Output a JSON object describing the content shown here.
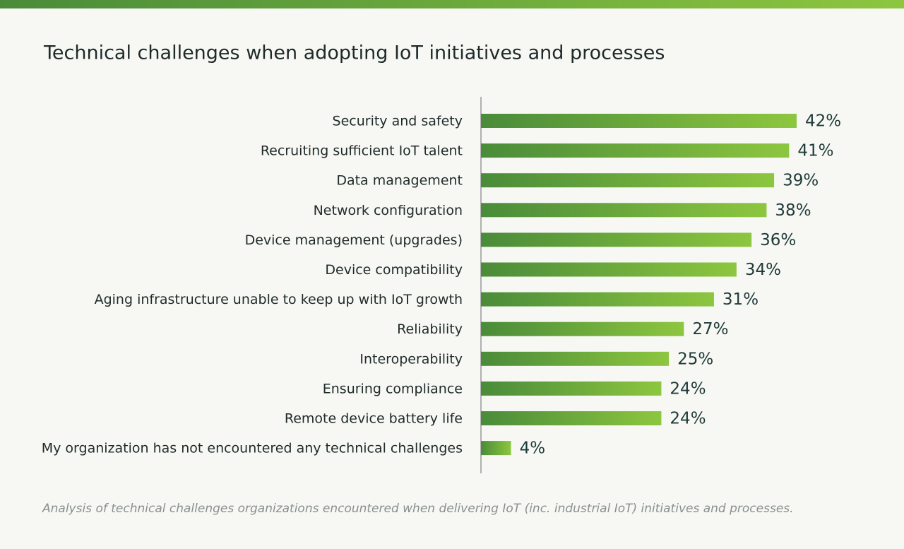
{
  "chart_data": {
    "type": "hbar",
    "title": "Technical challenges when adopting IoT initiatives and processes",
    "footnote": "Analysis of technical challenges organizations encountered when delivering IoT (inc. industrial IoT) initiatives and processes.",
    "categories": [
      "Security and safety",
      "Recruiting sufficient IoT talent",
      "Data management",
      "Network configuration",
      "Device management (upgrades)",
      "Device compatibility",
      "Aging infrastructure unable to keep up with IoT growth",
      "Reliability",
      "Interoperability",
      "Ensuring compliance",
      "Remote device battery life",
      "My organization has not encountered any technical challenges"
    ],
    "values": [
      42,
      41,
      39,
      38,
      36,
      34,
      31,
      27,
      25,
      24,
      24,
      4
    ],
    "value_labels": [
      "42%",
      "41%",
      "39%",
      "38%",
      "36%",
      "34%",
      "31%",
      "27%",
      "25%",
      "24%",
      "24%",
      "4%"
    ],
    "colors": [
      "#4a8b3a",
      "#8dc63f"
    ]
  }
}
